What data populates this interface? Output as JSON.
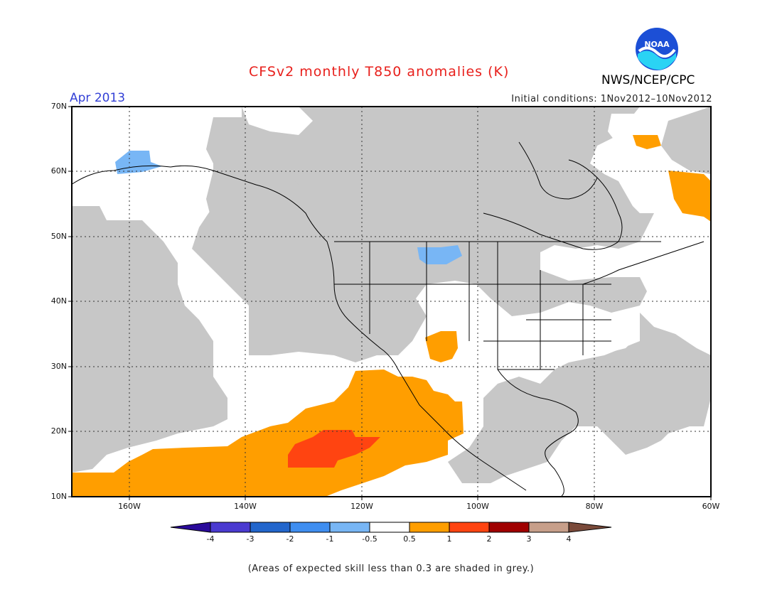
{
  "header": {
    "title": "CFSv2 monthly T850 anomalies (K)",
    "organization": "NWS/NCEP/CPC",
    "logo_text": "NOAA",
    "valid_month": "Apr 2013",
    "initial_conditions": "Initial conditions: 1Nov2012–10Nov2012"
  },
  "map": {
    "lat_labels": [
      "70N",
      "60N",
      "50N",
      "40N",
      "30N",
      "20N",
      "10N"
    ],
    "lon_labels": [
      "160W",
      "140W",
      "120W",
      "100W",
      "80W",
      "60W"
    ]
  },
  "colorbar": {
    "labels": [
      "-4",
      "-3",
      "-2",
      "-1",
      "-0.5",
      "0.5",
      "1",
      "2",
      "3",
      "4"
    ],
    "colors": [
      "#2a0a9a",
      "#4a3ad0",
      "#2266cc",
      "#3f8ef0",
      "#78b6f5",
      "#ffffff",
      "#ff9e00",
      "#ff4411",
      "#a00000",
      "#c79f8a",
      "#7a4a3a"
    ]
  },
  "legend_colors": {
    "low_skill_grey": "#c7c7c7",
    "anomaly_0_5_to_1": "#ff9e00",
    "anomaly_1_to_2": "#ff4411",
    "anomaly_neg_0_5_to_neg_1": "#78b6f5"
  },
  "footnote": "(Areas of expected skill less than 0.3 are shaded in grey.)"
}
